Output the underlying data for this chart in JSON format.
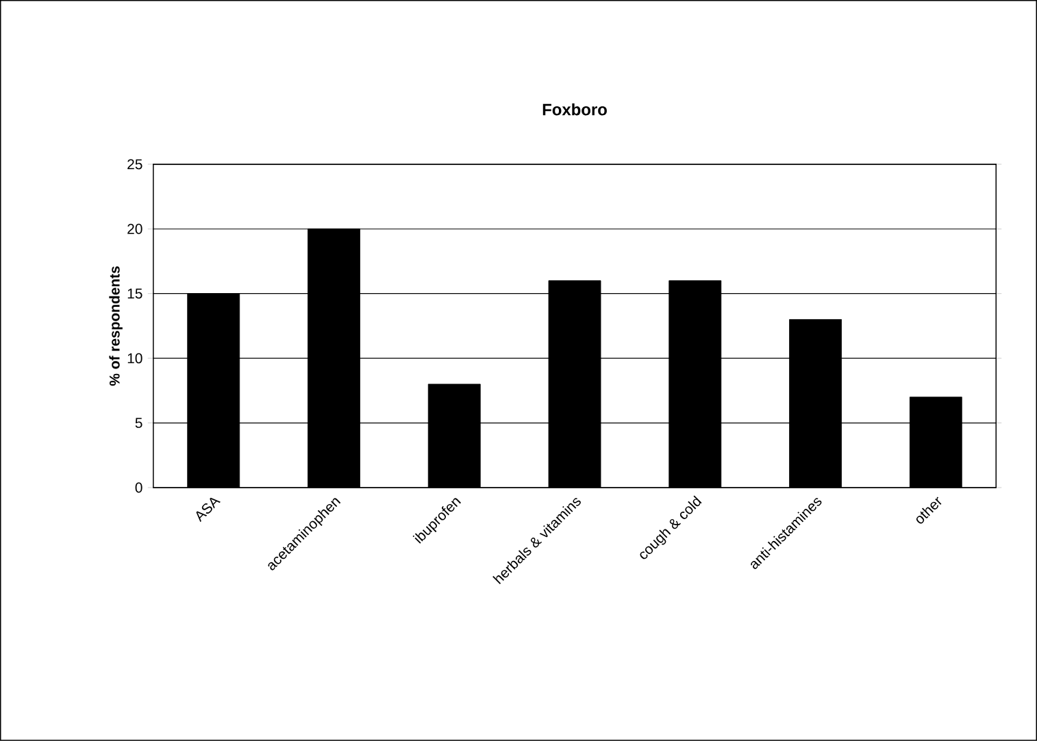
{
  "chart_data": {
    "type": "bar",
    "title": "Foxboro",
    "ylabel": "% of respondents",
    "categories": [
      "ASA",
      "acetaminophen",
      "ibuprofen",
      "herbals & vitamins",
      "cough & cold",
      "anti-histamines",
      "other"
    ],
    "values": [
      15,
      20,
      8,
      16,
      16,
      13,
      7
    ],
    "color": "#000000",
    "ylim": [
      0,
      25
    ],
    "yticks": [
      0,
      5,
      10,
      15,
      20,
      25
    ],
    "grid": "y"
  }
}
